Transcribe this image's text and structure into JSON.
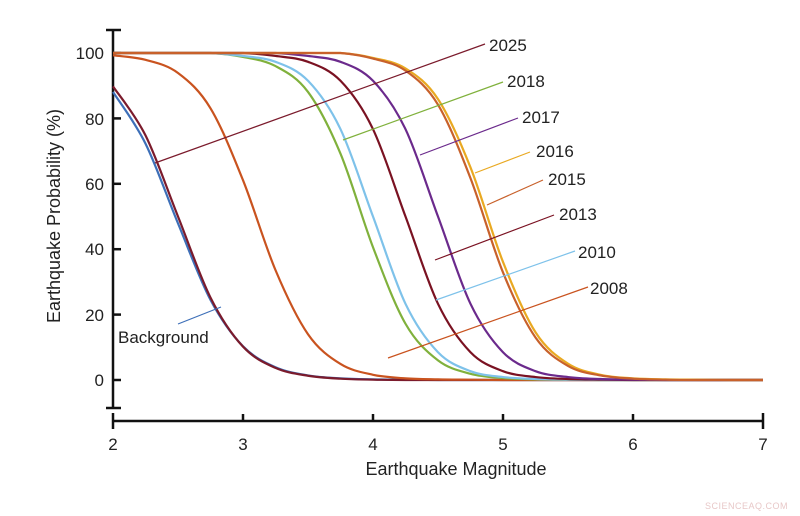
{
  "chart_data": {
    "type": "line",
    "title": "",
    "xlabel": "Earthquake Magnitude",
    "ylabel": "Earthquake Probability (%)",
    "xlim": [
      2,
      7
    ],
    "ylim": [
      -8,
      107
    ],
    "grid": false,
    "legend": "inline leader-line labels",
    "x_ticks": [
      "2",
      "3",
      "4",
      "5",
      "6",
      "7"
    ],
    "y_ticks": [
      "0",
      "20",
      "40",
      "60",
      "80",
      "100"
    ],
    "x": [
      2,
      2.25,
      2.5,
      2.75,
      3,
      3.25,
      3.5,
      3.75,
      4,
      4.25,
      4.5,
      4.75,
      5,
      5.25,
      5.5,
      5.75,
      6,
      6.25,
      6.5,
      6.75,
      7
    ],
    "series": [
      {
        "name": "Background",
        "color": "#3d6fb8",
        "values": [
          88.1,
          72.3,
          47.9,
          24.5,
          10.3,
          3.9,
          1.4,
          0.5,
          0.2,
          0.1,
          0,
          0,
          0,
          0,
          0,
          0,
          0,
          0,
          0,
          0,
          0
        ]
      },
      {
        "name": "2025",
        "color": "#7b1b2c",
        "values": [
          89.8,
          74.8,
          50,
          25.2,
          10.2,
          3.7,
          1.3,
          0.4,
          0.1,
          0,
          0,
          0,
          0,
          0,
          0,
          0,
          0,
          0,
          0,
          0,
          0
        ]
      },
      {
        "name": "2008",
        "color": "#c9531f",
        "values": [
          99.3,
          97.9,
          93.9,
          83.1,
          61.1,
          33.6,
          14.0,
          4.9,
          1.6,
          0.5,
          0.2,
          0.1,
          0,
          0,
          0,
          0,
          0,
          0,
          0,
          0,
          0
        ]
      },
      {
        "name": "2018",
        "color": "#80b13c",
        "values": [
          100,
          100,
          100,
          100,
          98.8,
          96.0,
          88.1,
          69.2,
          40.6,
          17.2,
          6.0,
          1.9,
          0.6,
          0.2,
          0.1,
          0,
          0,
          0,
          0,
          0,
          0
        ]
      },
      {
        "name": "2010",
        "color": "#7ec2ea",
        "values": [
          100,
          100,
          100,
          100,
          99.1,
          97.3,
          91.5,
          76.7,
          50,
          23.3,
          8.5,
          2.7,
          0.9,
          0.3,
          0.1,
          0,
          0,
          0,
          0,
          0,
          0
        ]
      },
      {
        "name": "2013",
        "color": "#7a1222",
        "values": [
          100,
          100,
          100,
          100,
          100,
          99.1,
          97.3,
          91.5,
          76.7,
          50,
          23.3,
          8.5,
          2.7,
          0.9,
          0.3,
          0.1,
          0,
          0,
          0,
          0,
          0
        ]
      },
      {
        "name": "2017",
        "color": "#6b2a8c",
        "values": [
          100,
          100,
          100,
          100,
          100,
          100,
          99.1,
          97.3,
          91.5,
          76.7,
          50,
          23.3,
          8.5,
          2.7,
          0.9,
          0.3,
          0.1,
          0,
          0,
          0,
          0
        ]
      },
      {
        "name": "2016",
        "color": "#e9a922",
        "values": [
          100,
          100,
          100,
          100,
          100,
          100,
          100,
          100,
          98.5,
          95.3,
          85.9,
          65.0,
          36.1,
          14.6,
          5.0,
          1.6,
          0.5,
          0.2,
          0.1,
          0,
          0
        ]
      },
      {
        "name": "2015",
        "color": "#c8612b",
        "values": [
          100,
          100,
          100,
          100,
          100,
          100,
          100,
          100,
          98.3,
          94.6,
          84.2,
          61.7,
          32.9,
          13.0,
          4.3,
          1.4,
          0.4,
          0.1,
          0,
          0,
          0
        ]
      }
    ]
  },
  "watermark": "SCIENCEAQ.COM"
}
